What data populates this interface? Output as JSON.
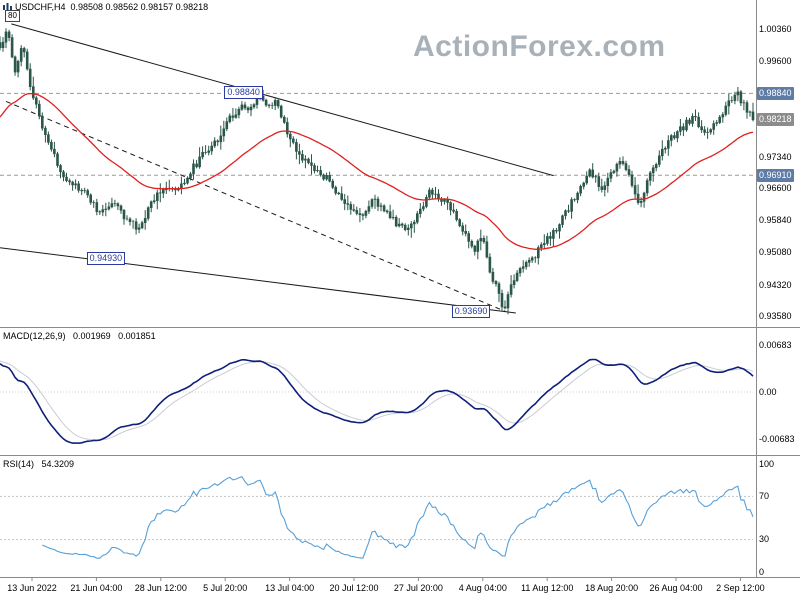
{
  "colors": {
    "candle": "#2a564a",
    "ma_line": "#e02020",
    "macd_line": "#0f1f7a",
    "macd_signal": "#c8ccd8",
    "rsi_line": "#58a0d8",
    "annotation": "#2b3aa0",
    "level_box_bg": "#5f7ca6",
    "current_box_bg": "#8c8c8c",
    "watermark": "#a8b0b8",
    "trendline": "#1a1a1a",
    "grid": "#8a8a8a"
  },
  "header": {
    "symbol_period": "USDCHF,H4",
    "ohlc_text": "0.98508 0.98562 0.98157 0.98218",
    "corner_label": "80"
  },
  "watermark_text": "ActionForex.com",
  "panels": {
    "macd": {
      "title": "MACD(12,26,9)",
      "value": "0.001969",
      "signal": "0.001851",
      "axis": [
        "0.00683",
        "0.00",
        "-0.00683"
      ]
    },
    "rsi": {
      "title": "RSI(14)",
      "value": "54.3209",
      "axis": [
        "100",
        "70",
        "30",
        "0"
      ]
    }
  },
  "chart_data": {
    "type": "candlestick",
    "symbol": "USDCHF",
    "timeframe": "H4",
    "title": "USDCHF H4 candlestick chart with red moving average, MACD(12,26,9) and RSI(14) panels",
    "approx_bars": 250,
    "x_labels": [
      "13 Jun 2022",
      "21 Jun 04:00",
      "28 Jun 12:00",
      "5 Jul 20:00",
      "13 Jul 04:00",
      "20 Jul 12:00",
      "27 Jul 20:00",
      "4 Aug 04:00",
      "11 Aug 12:00",
      "18 Aug 20:00",
      "26 Aug 04:00",
      "2 Sep 12:00"
    ],
    "y_axis": {
      "top": 1.0076,
      "bottom": 0.934,
      "ticks": [
        "1.00360",
        "0.99600",
        "0.97340",
        "0.96600",
        "0.95840",
        "0.95080",
        "0.94320",
        "0.93580"
      ],
      "boxed_levels": [
        "0.98840",
        "0.96910"
      ],
      "current": "0.98218"
    },
    "current_ohlc": {
      "o": 0.98508,
      "h": 0.98562,
      "l": 0.98157,
      "c": 0.98218
    },
    "price_path": [
      [
        0.0,
        0.999
      ],
      [
        0.01,
        1.004
      ],
      [
        0.02,
        0.9935
      ],
      [
        0.03,
        1.001
      ],
      [
        0.04,
        0.99
      ],
      [
        0.05,
        0.984
      ],
      [
        0.062,
        0.978
      ],
      [
        0.08,
        0.97
      ],
      [
        0.1,
        0.9665
      ],
      [
        0.118,
        0.964
      ],
      [
        0.132,
        0.96
      ],
      [
        0.15,
        0.9628
      ],
      [
        0.168,
        0.9588
      ],
      [
        0.185,
        0.956
      ],
      [
        0.2,
        0.9625
      ],
      [
        0.215,
        0.9662
      ],
      [
        0.235,
        0.965
      ],
      [
        0.255,
        0.9705
      ],
      [
        0.272,
        0.9745
      ],
      [
        0.288,
        0.9775
      ],
      [
        0.305,
        0.9825
      ],
      [
        0.32,
        0.9852
      ],
      [
        0.332,
        0.984
      ],
      [
        0.345,
        0.9884
      ],
      [
        0.355,
        0.9845
      ],
      [
        0.365,
        0.9868
      ],
      [
        0.378,
        0.9808
      ],
      [
        0.392,
        0.9752
      ],
      [
        0.406,
        0.9722
      ],
      [
        0.42,
        0.97
      ],
      [
        0.436,
        0.968
      ],
      [
        0.45,
        0.9642
      ],
      [
        0.465,
        0.961
      ],
      [
        0.48,
        0.9592
      ],
      [
        0.495,
        0.9632
      ],
      [
        0.51,
        0.9612
      ],
      [
        0.525,
        0.9578
      ],
      [
        0.54,
        0.9562
      ],
      [
        0.556,
        0.96
      ],
      [
        0.57,
        0.9652
      ],
      [
        0.585,
        0.964
      ],
      [
        0.6,
        0.9612
      ],
      [
        0.615,
        0.956
      ],
      [
        0.628,
        0.9512
      ],
      [
        0.64,
        0.9545
      ],
      [
        0.652,
        0.9455
      ],
      [
        0.661,
        0.9418
      ],
      [
        0.67,
        0.9369
      ],
      [
        0.68,
        0.944
      ],
      [
        0.694,
        0.9478
      ],
      [
        0.71,
        0.9502
      ],
      [
        0.726,
        0.954
      ],
      [
        0.74,
        0.9565
      ],
      [
        0.755,
        0.9612
      ],
      [
        0.77,
        0.966
      ],
      [
        0.784,
        0.97
      ],
      [
        0.798,
        0.9662
      ],
      [
        0.812,
        0.9692
      ],
      [
        0.826,
        0.973
      ],
      [
        0.84,
        0.9665
      ],
      [
        0.85,
        0.9622
      ],
      [
        0.862,
        0.969
      ],
      [
        0.876,
        0.974
      ],
      [
        0.89,
        0.9778
      ],
      [
        0.905,
        0.98
      ],
      [
        0.92,
        0.983
      ],
      [
        0.935,
        0.9792
      ],
      [
        0.95,
        0.9812
      ],
      [
        0.965,
        0.9858
      ],
      [
        0.98,
        0.988
      ],
      [
        1.0,
        0.98218
      ]
    ],
    "annotations": [
      {
        "text": "0.98840",
        "x_frac": 0.298,
        "price": 0.9884
      },
      {
        "text": "0.94930",
        "x_frac": 0.115,
        "price": 0.9493
      },
      {
        "text": "0.93690",
        "x_frac": 0.6,
        "price": 0.9369
      }
    ],
    "levels_dashed": [
      0.9884,
      0.9691
    ],
    "trendlines": [
      {
        "from": [
          0.015,
          1.0048
        ],
        "to": [
          0.735,
          0.969
        ],
        "style": "solid"
      },
      {
        "from": [
          0.0,
          0.952
        ],
        "to": [
          0.685,
          0.9366
        ],
        "style": "solid"
      },
      {
        "from": [
          0.008,
          0.9865
        ],
        "to": [
          0.672,
          0.9369
        ],
        "style": "dashed"
      }
    ],
    "indicators": {
      "ma": {
        "type": "ema",
        "period": 40,
        "seed": 0.982
      },
      "macd": {
        "params": [
          12,
          26,
          9
        ],
        "current": 0.001969,
        "signal_current": 0.001851,
        "axis_max": 0.00683
      },
      "rsi": {
        "period": 14,
        "current": 54.3209,
        "guides": [
          70,
          30
        ],
        "range": [
          0,
          100
        ]
      }
    }
  }
}
